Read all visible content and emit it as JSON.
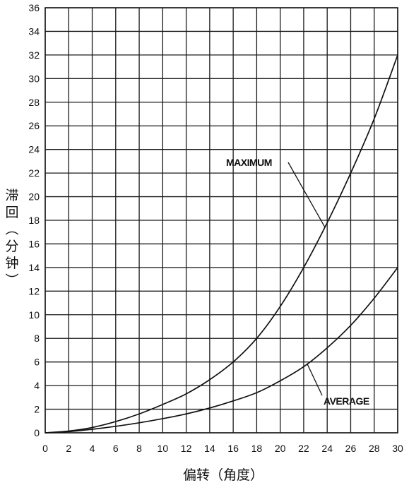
{
  "chart_data": {
    "type": "line",
    "title": "",
    "xlabel": "偏转（角度）",
    "ylabel": "滞回（分钟）",
    "xlim": [
      0,
      30
    ],
    "ylim": [
      0,
      36
    ],
    "x_ticks": [
      0,
      2,
      4,
      6,
      8,
      10,
      12,
      14,
      16,
      18,
      20,
      22,
      24,
      26,
      28,
      30
    ],
    "y_ticks": [
      0,
      2,
      4,
      6,
      8,
      10,
      12,
      14,
      16,
      18,
      20,
      22,
      24,
      26,
      28,
      30,
      32,
      34,
      36
    ],
    "grid": true,
    "series": [
      {
        "name": "MAXIMUM",
        "x": [
          0,
          2,
          4,
          6,
          8,
          10,
          12,
          14,
          16,
          18,
          20,
          22,
          24,
          26,
          28,
          30
        ],
        "values": [
          0,
          0.15,
          0.45,
          0.95,
          1.6,
          2.4,
          3.3,
          4.5,
          6.0,
          8.0,
          10.7,
          14.0,
          17.8,
          22.0,
          26.6,
          32.0
        ]
      },
      {
        "name": "AVERAGE",
        "x": [
          0,
          2,
          4,
          6,
          8,
          10,
          12,
          14,
          16,
          18,
          20,
          22,
          24,
          26,
          28,
          30
        ],
        "values": [
          0,
          0.1,
          0.3,
          0.55,
          0.85,
          1.2,
          1.6,
          2.1,
          2.7,
          3.4,
          4.4,
          5.6,
          7.2,
          9.1,
          11.4,
          14.0
        ]
      }
    ],
    "annotations": [
      {
        "text": "MAXIMUM",
        "series": "MAXIMUM",
        "at_x": 23.8
      },
      {
        "text": "AVERAGE",
        "series": "AVERAGE",
        "at_x": 22.3
      }
    ]
  }
}
